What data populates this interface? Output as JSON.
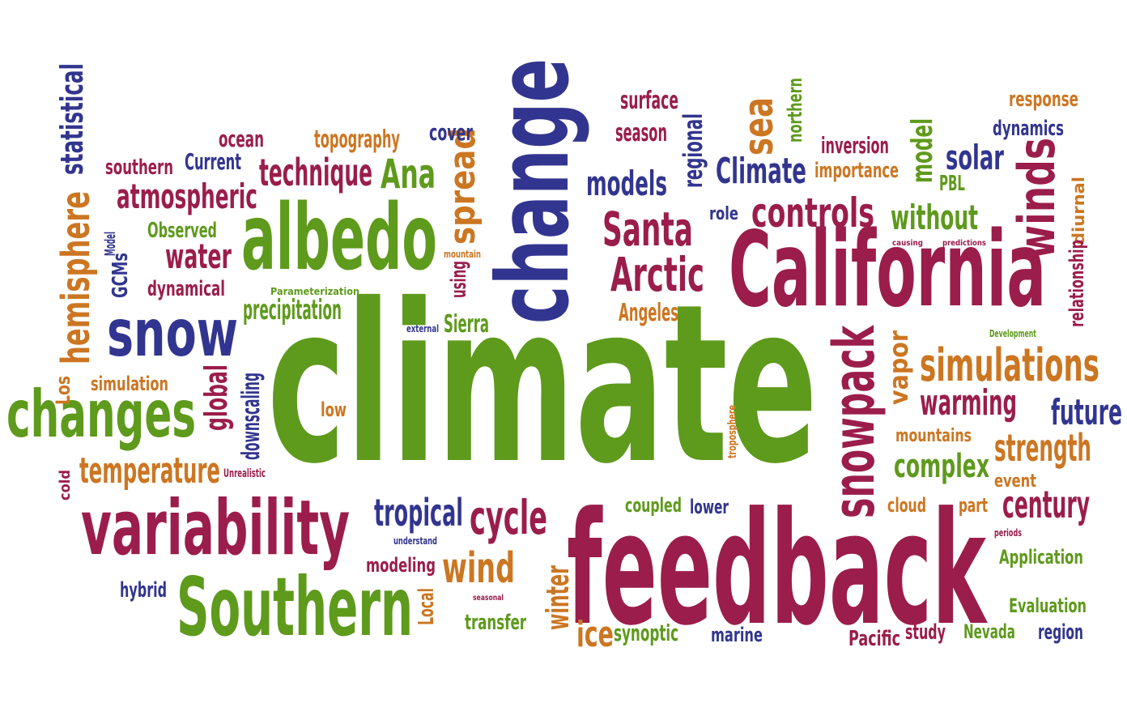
{
  "palette": {
    "green": "#5e9a1c",
    "crimson": "#9b1d4b",
    "navy": "#32358f",
    "orange": "#cc7622"
  },
  "words": [
    {
      "text": "climate",
      "color": "green"
    },
    {
      "text": "feedback",
      "color": "crimson"
    },
    {
      "text": "change",
      "color": "navy"
    },
    {
      "text": "California",
      "color": "crimson"
    },
    {
      "text": "albedo",
      "color": "green"
    },
    {
      "text": "Southern",
      "color": "green"
    },
    {
      "text": "variability",
      "color": "crimson"
    },
    {
      "text": "changes",
      "color": "green"
    },
    {
      "text": "snow",
      "color": "navy"
    },
    {
      "text": "snowpack",
      "color": "crimson"
    },
    {
      "text": "winds",
      "color": "crimson"
    },
    {
      "text": "controls",
      "color": "crimson"
    },
    {
      "text": "Santa",
      "color": "crimson"
    },
    {
      "text": "Arctic",
      "color": "crimson"
    },
    {
      "text": "simulations",
      "color": "orange"
    },
    {
      "text": "hemisphere",
      "color": "orange"
    },
    {
      "text": "spread",
      "color": "orange"
    },
    {
      "text": "cycle",
      "color": "crimson"
    },
    {
      "text": "tropical",
      "color": "navy"
    },
    {
      "text": "wind",
      "color": "orange"
    },
    {
      "text": "century",
      "color": "crimson"
    },
    {
      "text": "strength",
      "color": "orange"
    },
    {
      "text": "warming",
      "color": "crimson"
    },
    {
      "text": "future",
      "color": "navy"
    },
    {
      "text": "complex",
      "color": "green"
    },
    {
      "text": "temperature",
      "color": "orange"
    },
    {
      "text": "technique",
      "color": "crimson"
    },
    {
      "text": "atmospheric",
      "color": "crimson"
    },
    {
      "text": "Climate",
      "color": "navy"
    },
    {
      "text": "models",
      "color": "navy"
    },
    {
      "text": "Ana",
      "color": "green"
    },
    {
      "text": "sea",
      "color": "orange"
    },
    {
      "text": "solar",
      "color": "navy"
    },
    {
      "text": "without",
      "color": "green"
    },
    {
      "text": "model",
      "color": "green"
    },
    {
      "text": "regional",
      "color": "navy"
    },
    {
      "text": "statistical",
      "color": "navy"
    },
    {
      "text": "water",
      "color": "crimson"
    },
    {
      "text": "global",
      "color": "crimson"
    },
    {
      "text": "winter",
      "color": "orange"
    },
    {
      "text": "ice",
      "color": "orange"
    },
    {
      "text": "precipitation",
      "color": "green"
    },
    {
      "text": "vapor",
      "color": "orange"
    },
    {
      "text": "Sierra",
      "color": "green"
    },
    {
      "text": "Angeles",
      "color": "orange"
    },
    {
      "text": "surface",
      "color": "crimson"
    },
    {
      "text": "season",
      "color": "crimson"
    },
    {
      "text": "cover",
      "color": "navy"
    },
    {
      "text": "topography",
      "color": "orange"
    },
    {
      "text": "ocean",
      "color": "crimson"
    },
    {
      "text": "southern",
      "color": "crimson"
    },
    {
      "text": "Current",
      "color": "navy"
    },
    {
      "text": "Observed",
      "color": "green"
    },
    {
      "text": "dynamical",
      "color": "crimson"
    },
    {
      "text": "GCMs",
      "color": "navy"
    },
    {
      "text": "Model",
      "color": "navy"
    },
    {
      "text": "Parameterization",
      "color": "green"
    },
    {
      "text": "using",
      "color": "crimson"
    },
    {
      "text": "mountain",
      "color": "orange"
    },
    {
      "text": "external",
      "color": "navy"
    },
    {
      "text": "Los",
      "color": "orange"
    },
    {
      "text": "simulation",
      "color": "orange"
    },
    {
      "text": "downscaling",
      "color": "navy"
    },
    {
      "text": "low",
      "color": "orange"
    },
    {
      "text": "cold",
      "color": "crimson"
    },
    {
      "text": "Unrealistic",
      "color": "crimson"
    },
    {
      "text": "response",
      "color": "orange"
    },
    {
      "text": "dynamics",
      "color": "navy"
    },
    {
      "text": "inversion",
      "color": "crimson"
    },
    {
      "text": "importance",
      "color": "orange"
    },
    {
      "text": "northern",
      "color": "green"
    },
    {
      "text": "PBL",
      "color": "green"
    },
    {
      "text": "diurnal",
      "color": "orange"
    },
    {
      "text": "relationship",
      "color": "crimson"
    },
    {
      "text": "causing",
      "color": "crimson"
    },
    {
      "text": "predictions",
      "color": "crimson"
    },
    {
      "text": "Development",
      "color": "green"
    },
    {
      "text": "role",
      "color": "navy"
    },
    {
      "text": "troposphere",
      "color": "orange"
    },
    {
      "text": "mountains",
      "color": "orange"
    },
    {
      "text": "event",
      "color": "orange"
    },
    {
      "text": "cloud",
      "color": "orange"
    },
    {
      "text": "part",
      "color": "orange"
    },
    {
      "text": "periods",
      "color": "crimson"
    },
    {
      "text": "Application",
      "color": "green"
    },
    {
      "text": "Evaluation",
      "color": "green"
    },
    {
      "text": "Nevada",
      "color": "green"
    },
    {
      "text": "region",
      "color": "navy"
    },
    {
      "text": "study",
      "color": "crimson"
    },
    {
      "text": "Pacific",
      "color": "crimson"
    },
    {
      "text": "marine",
      "color": "navy"
    },
    {
      "text": "synoptic",
      "color": "green"
    },
    {
      "text": "coupled",
      "color": "green"
    },
    {
      "text": "lower",
      "color": "navy"
    },
    {
      "text": "transfer",
      "color": "green"
    },
    {
      "text": "seasonal",
      "color": "crimson"
    },
    {
      "text": "Local",
      "color": "orange"
    },
    {
      "text": "modeling",
      "color": "crimson"
    },
    {
      "text": "understand",
      "color": "navy"
    },
    {
      "text": "hybrid",
      "color": "navy"
    }
  ]
}
